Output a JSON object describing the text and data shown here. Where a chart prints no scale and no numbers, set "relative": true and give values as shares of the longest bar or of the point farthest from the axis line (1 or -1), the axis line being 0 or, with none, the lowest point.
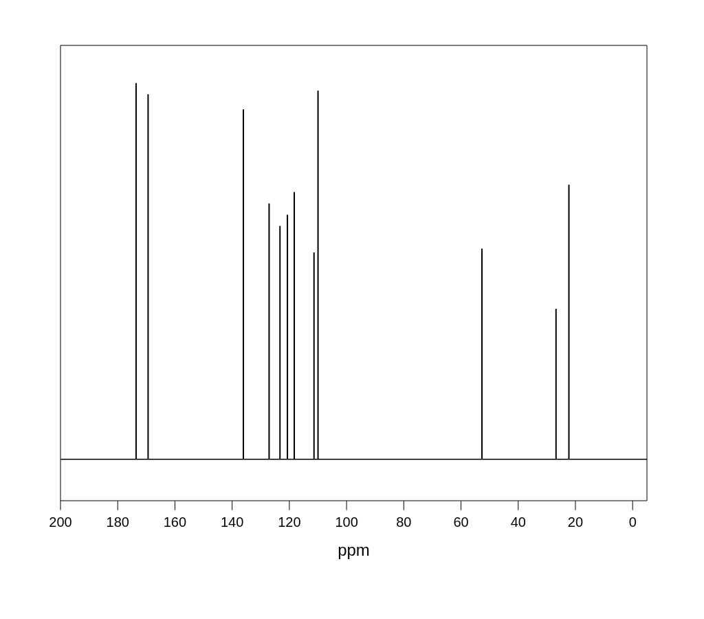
{
  "chart_data": {
    "type": "bar",
    "xlabel": "ppm",
    "relative": true,
    "color": "#000000",
    "x": [
      173.6,
      169.4,
      136.1,
      127.1,
      123.3,
      120.7,
      118.3,
      111.4,
      110.0,
      52.7,
      26.8,
      22.3
    ],
    "values": [
      1.0,
      0.97,
      0.93,
      0.68,
      0.62,
      0.65,
      0.71,
      0.55,
      0.98,
      0.56,
      0.4,
      0.73
    ],
    "xlim": [
      200,
      -5
    ],
    "xticks": [
      200,
      180,
      160,
      140,
      120,
      100,
      80,
      60,
      40,
      20,
      0
    ]
  }
}
